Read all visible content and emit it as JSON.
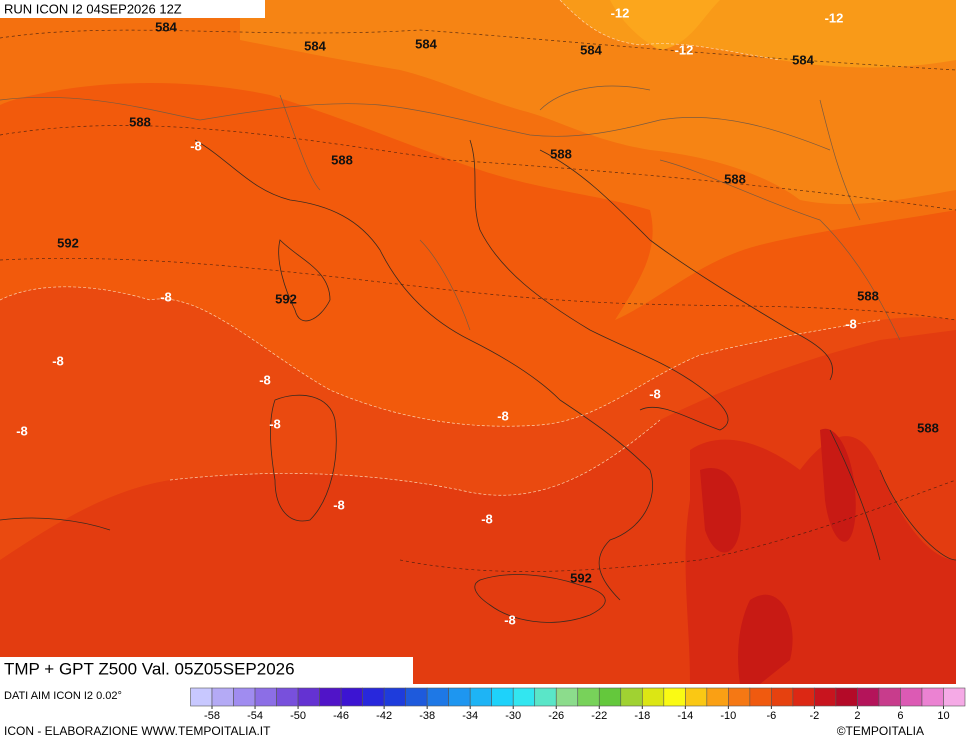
{
  "header": {
    "run": "RUN ICON I2 04SEP2026 12Z"
  },
  "map": {
    "contour_labels": [
      584,
      584,
      584,
      584,
      584,
      -12,
      -12,
      -12,
      588,
      -8,
      588,
      588,
      588,
      592,
      -8,
      592,
      588,
      -8,
      -8,
      -8,
      -8,
      -8,
      -8,
      -8,
      588,
      -8,
      -8,
      592,
      -8
    ]
  },
  "footer": {
    "title": "TMP + GPT Z500 Val. 05Z05SEP2026",
    "source": "DATI AIM ICON I2 0.02°",
    "credit": "ICON - ELABORAZIONE WWW.TEMPOITALIA.IT",
    "copyright": "©TEMPOITALIA"
  },
  "colorbar": {
    "range": [
      -60,
      12
    ],
    "ticks": [
      -58,
      -54,
      -50,
      -46,
      -42,
      -38,
      -34,
      -30,
      -26,
      -22,
      -18,
      -14,
      -10,
      -6,
      -2,
      2,
      6,
      10
    ],
    "colors": [
      "#c8c8ff",
      "#b4aaf5",
      "#a08cf0",
      "#8c6ee6",
      "#7850dc",
      "#6432d2",
      "#5014c8",
      "#3c14d2",
      "#2828dc",
      "#1e3cdc",
      "#1e5adc",
      "#1e78e6",
      "#1e96f0",
      "#1eb4f5",
      "#1ed2fa",
      "#32e6f0",
      "#5ae6c8",
      "#8cdc8c",
      "#78d25a",
      "#64c83c",
      "#a0d232",
      "#dce614",
      "#fafa14",
      "#fac814",
      "#faa014",
      "#f57814",
      "#f05a0f",
      "#e6410f",
      "#dc2814",
      "#c8141e",
      "#b40a28",
      "#b4145a",
      "#c83c8c",
      "#dc5ab4",
      "#eb82d2",
      "#f5aae6"
    ]
  }
}
